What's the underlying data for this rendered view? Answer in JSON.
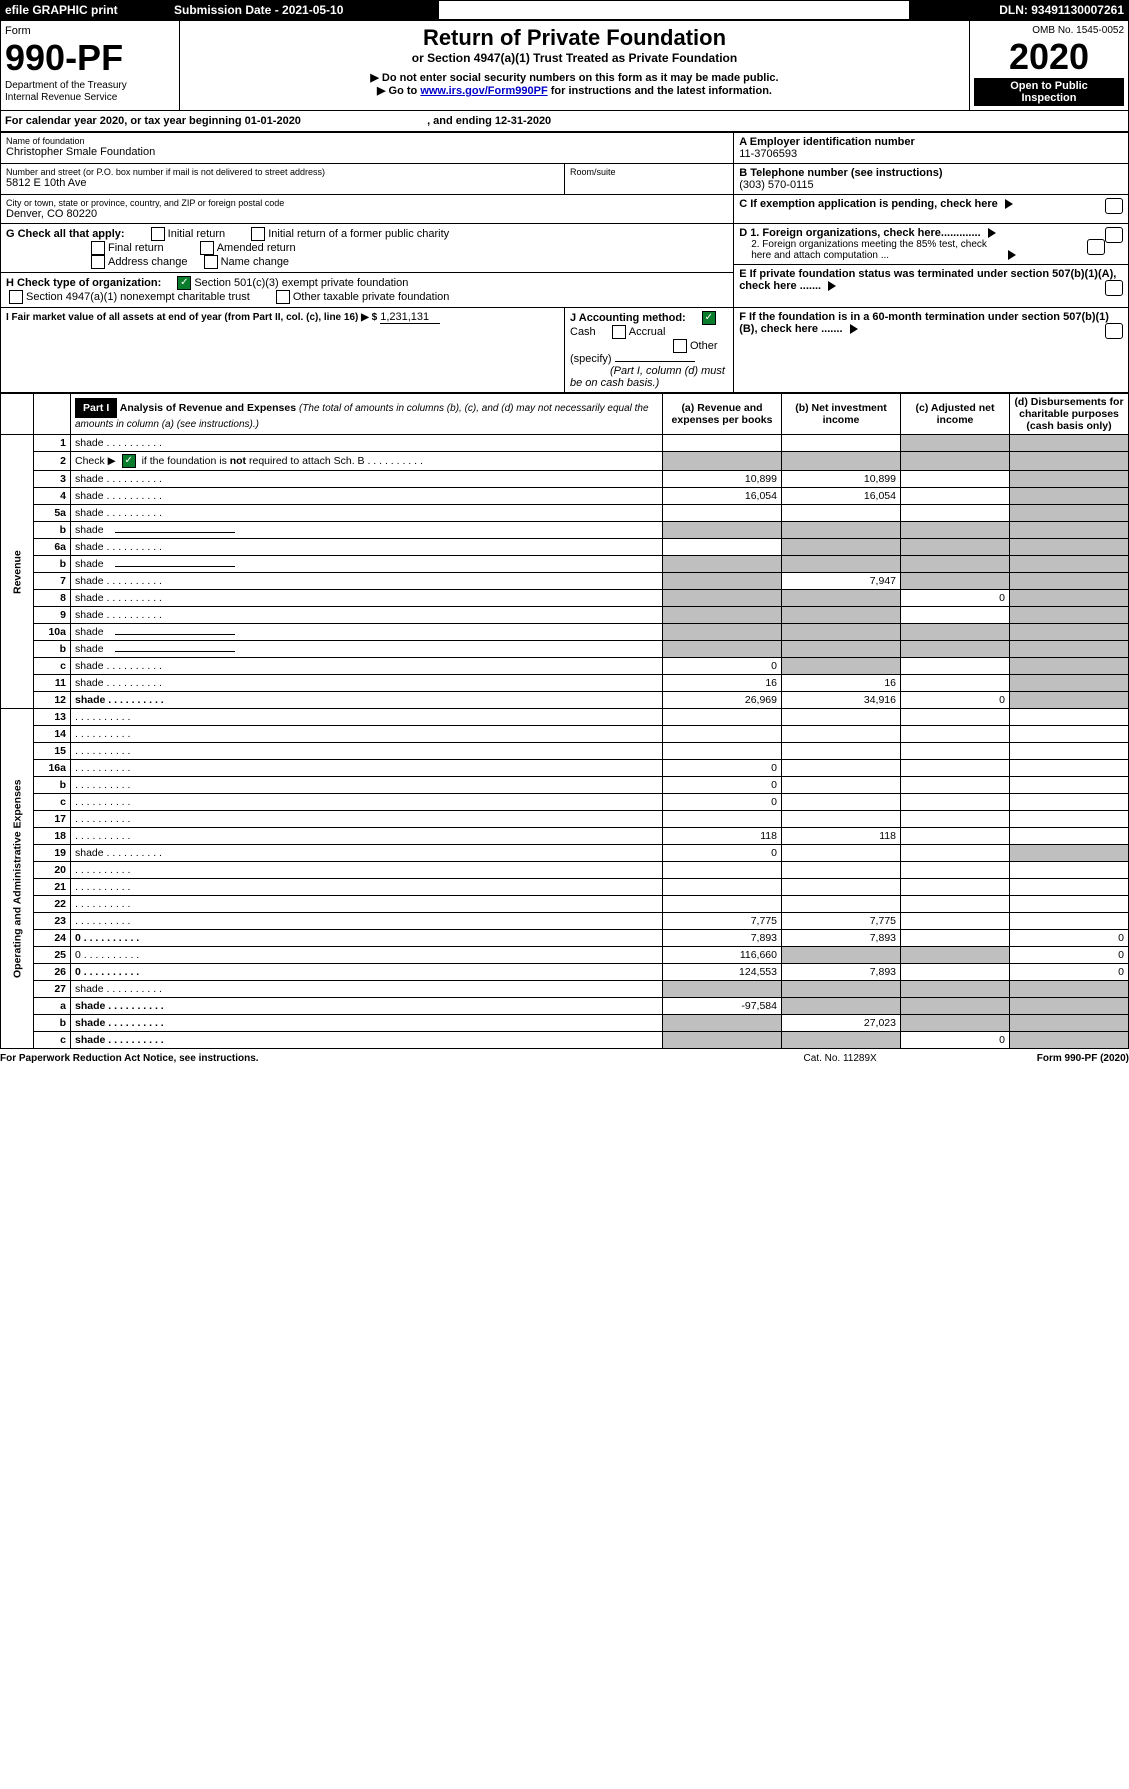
{
  "top": {
    "efile": "efile GRAPHIC print",
    "sub_date_label": "Submission Date - 2021-05-10",
    "dln_label": "DLN: 93491130007261",
    "omb": "OMB No. 1545-0052"
  },
  "form_block": {
    "form_word": "Form",
    "form_no": "990-PF",
    "dept": "Department of the Treasury\nInternal Revenue Service"
  },
  "header": {
    "title": "Return of Private Foundation",
    "sub": "or Section 4947(a)(1) Trust Treated as Private Foundation",
    "l1": "▶ Do not enter social security numbers on this form as it may be made public.",
    "l2_a": "▶ Go to ",
    "l2_link": "www.irs.gov/Form990PF",
    "l2_b": " for instructions and the latest information."
  },
  "right_block": {
    "year": "2020",
    "open": "Open to Public\nInspection"
  },
  "cal": {
    "pre": "For calendar year 2020, or tax year beginning ",
    "begin": "01-01-2020",
    "mid": " , and ending ",
    "end": "12-31-2020"
  },
  "id": {
    "name_lbl": "Name of foundation",
    "name": "Christopher Smale Foundation",
    "addr_lbl": "Number and street (or P.O. box number if mail is not delivered to street address)",
    "addr": "5812 E 10th Ave",
    "room_lbl": "Room/suite",
    "city_lbl": "City or town, state or province, country, and ZIP or foreign postal code",
    "city": "Denver, CO  80220",
    "ein_lbl": "A Employer identification number",
    "ein": "11-3706593",
    "tel_lbl": "B Telephone number (see instructions)",
    "tel": "(303) 570-0115",
    "c": "C  If exemption application is pending, check here",
    "d1": "D 1. Foreign organizations, check here.............",
    "d2": "2. Foreign organizations meeting the 85% test, check here and attach computation ...",
    "e": "E  If private foundation status was terminated under section 507(b)(1)(A), check here .......",
    "f": "F  If the foundation is in a 60-month termination under section 507(b)(1)(B), check here ......."
  },
  "g": {
    "label": "G Check all that apply:",
    "opts": [
      "Initial return",
      "Initial return of a former public charity",
      "Final return",
      "Amended return",
      "Address change",
      "Name change"
    ]
  },
  "h": {
    "label": "H Check type of organization:",
    "o1": "Section 501(c)(3) exempt private foundation",
    "o2": "Section 4947(a)(1) nonexempt charitable trust",
    "o3": "Other taxable private foundation"
  },
  "i": {
    "label": "I Fair market value of all assets at end of year (from Part II, col. (c), line 16) ▶ $",
    "val": "1,231,131"
  },
  "j": {
    "label": "J Accounting method:",
    "cash": "Cash",
    "accrual": "Accrual",
    "other": "Other (specify)",
    "note": "(Part I, column (d) must be on cash basis.)"
  },
  "part1": {
    "hdr": "Part I",
    "title": "Analysis of Revenue and Expenses",
    "sub": " (The total of amounts in columns (b), (c), and (d) may not necessarily equal the amounts in column (a) (see instructions).)",
    "cols": {
      "a": "(a)   Revenue and expenses per books",
      "b": "(b)  Net investment income",
      "c": "(c)  Adjusted net income",
      "d": "(d)  Disbursements for charitable purposes (cash basis only)"
    }
  },
  "sections": {
    "revenue": "Revenue",
    "expenses": "Operating and Administrative Expenses"
  },
  "rows": [
    {
      "n": "1",
      "d": "shade",
      "a": "",
      "b": "",
      "c": "shade"
    },
    {
      "n": "2",
      "d": "shade",
      "a": "shade",
      "b": "shade",
      "c": "shade",
      "special": "check"
    },
    {
      "n": "3",
      "d": "shade",
      "a": "10,899",
      "b": "10,899",
      "c": ""
    },
    {
      "n": "4",
      "d": "shade",
      "a": "16,054",
      "b": "16,054",
      "c": ""
    },
    {
      "n": "5a",
      "d": "shade",
      "a": "",
      "b": "",
      "c": ""
    },
    {
      "n": "b",
      "d": "shade",
      "a": "shade",
      "b": "shade",
      "c": "shade",
      "line": true
    },
    {
      "n": "6a",
      "d": "shade",
      "a": "",
      "b": "shade",
      "c": "shade"
    },
    {
      "n": "b",
      "d": "shade",
      "a": "shade",
      "b": "shade",
      "c": "shade",
      "line": true
    },
    {
      "n": "7",
      "d": "shade",
      "a": "shade",
      "b": "7,947",
      "c": "shade"
    },
    {
      "n": "8",
      "d": "shade",
      "a": "shade",
      "b": "shade",
      "c": "0"
    },
    {
      "n": "9",
      "d": "shade",
      "a": "shade",
      "b": "shade",
      "c": ""
    },
    {
      "n": "10a",
      "d": "shade",
      "a": "shade",
      "b": "shade",
      "c": "shade",
      "line": true
    },
    {
      "n": "b",
      "d": "shade",
      "a": "shade",
      "b": "shade",
      "c": "shade",
      "line": true
    },
    {
      "n": "c",
      "d": "shade",
      "a": "0",
      "b": "shade",
      "c": ""
    },
    {
      "n": "11",
      "d": "shade",
      "a": "16",
      "b": "16",
      "c": ""
    },
    {
      "n": "12",
      "d": "shade",
      "a": "26,969",
      "b": "34,916",
      "c": "0",
      "bold": true
    }
  ],
  "exp_rows": [
    {
      "n": "13",
      "d": "",
      "a": "",
      "b": "",
      "c": ""
    },
    {
      "n": "14",
      "d": "",
      "a": "",
      "b": "",
      "c": ""
    },
    {
      "n": "15",
      "d": "",
      "a": "",
      "b": "",
      "c": ""
    },
    {
      "n": "16a",
      "d": "",
      "a": "0",
      "b": "",
      "c": ""
    },
    {
      "n": "b",
      "d": "",
      "a": "0",
      "b": "",
      "c": ""
    },
    {
      "n": "c",
      "d": "",
      "a": "0",
      "b": "",
      "c": ""
    },
    {
      "n": "17",
      "d": "",
      "a": "",
      "b": "",
      "c": ""
    },
    {
      "n": "18",
      "d": "",
      "a": "118",
      "b": "118",
      "c": ""
    },
    {
      "n": "19",
      "d": "shade",
      "a": "0",
      "b": "",
      "c": ""
    },
    {
      "n": "20",
      "d": "",
      "a": "",
      "b": "",
      "c": ""
    },
    {
      "n": "21",
      "d": "",
      "a": "",
      "b": "",
      "c": ""
    },
    {
      "n": "22",
      "d": "",
      "a": "",
      "b": "",
      "c": ""
    },
    {
      "n": "23",
      "d": "",
      "a": "7,775",
      "b": "7,775",
      "c": ""
    },
    {
      "n": "24",
      "d": "0",
      "a": "7,893",
      "b": "7,893",
      "c": "",
      "bold": true
    },
    {
      "n": "25",
      "d": "0",
      "a": "116,660",
      "b": "shade",
      "c": "shade"
    },
    {
      "n": "26",
      "d": "0",
      "a": "124,553",
      "b": "7,893",
      "c": "",
      "bold": true
    },
    {
      "n": "27",
      "d": "shade",
      "a": "shade",
      "b": "shade",
      "c": "shade"
    },
    {
      "n": "a",
      "d": "shade",
      "a": "-97,584",
      "b": "shade",
      "c": "shade",
      "bold": true
    },
    {
      "n": "b",
      "d": "shade",
      "a": "shade",
      "b": "27,023",
      "c": "shade",
      "bold": true
    },
    {
      "n": "c",
      "d": "shade",
      "a": "shade",
      "b": "shade",
      "c": "0",
      "bold": true
    }
  ],
  "footer": {
    "left": "For Paperwork Reduction Act Notice, see instructions.",
    "mid": "Cat. No. 11289X",
    "right": "Form 990-PF (2020)"
  },
  "colors": {
    "shade": "#bfbfbf",
    "black": "#000000",
    "check_green": "#0a7d2c",
    "link": "#0000cc"
  }
}
